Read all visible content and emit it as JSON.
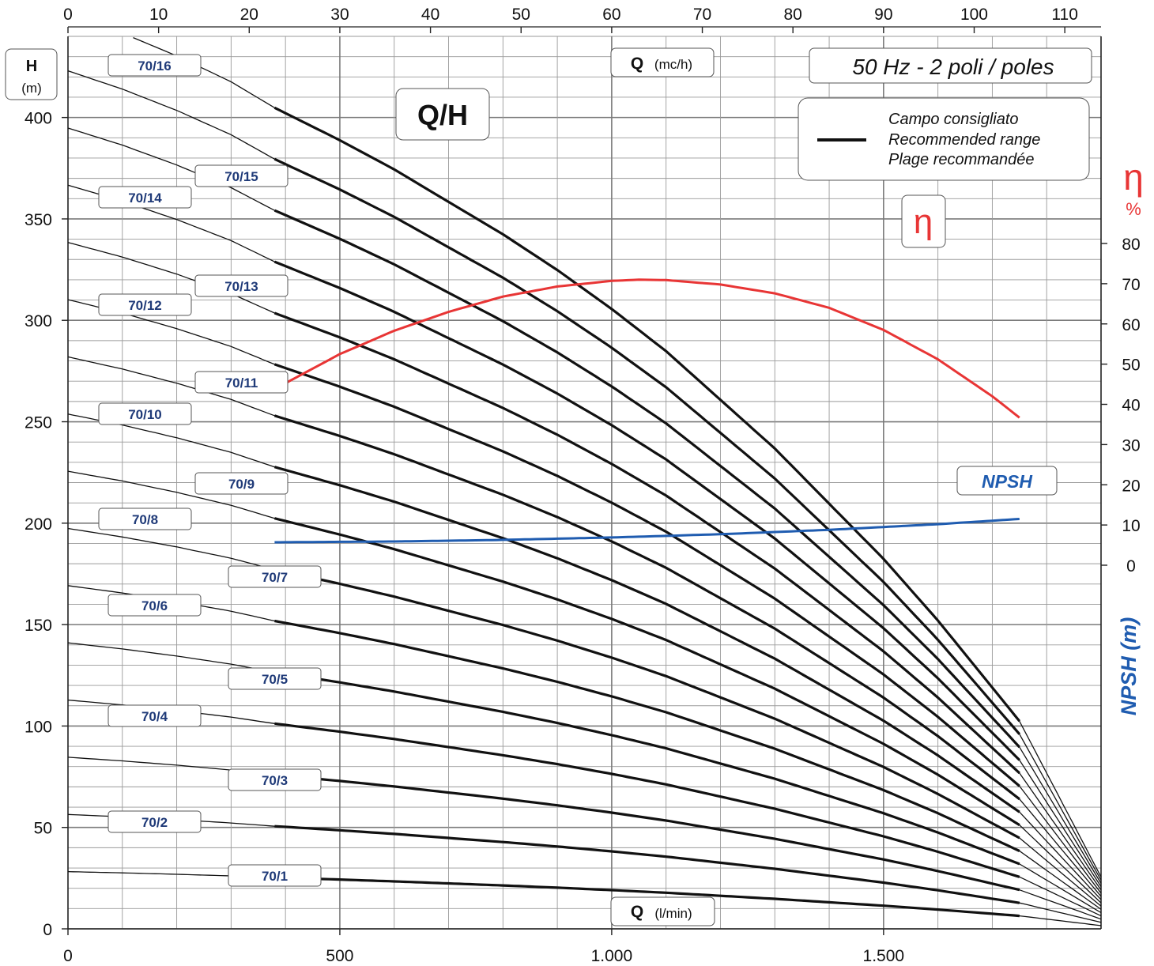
{
  "chart_data": {
    "type": "line",
    "title": "Q/H",
    "frequency_label": "50 Hz - 2 poli / poles",
    "legend": {
      "placement": "top-right",
      "lines": [
        "Campo consigliato",
        "Recommended range",
        "Plage recommandée"
      ]
    },
    "axes": {
      "x_bottom": {
        "label_bold": "Q",
        "label_unit": "(l/min)",
        "range": [
          0,
          1900
        ],
        "ticks": [
          0,
          500,
          1000,
          1500
        ],
        "tick_labels": [
          "0",
          "500",
          "1.000",
          "1.500"
        ]
      },
      "x_top": {
        "label_bold": "Q",
        "label_unit": "(mc/h)",
        "range": [
          0,
          114
        ],
        "ticks": [
          0,
          10,
          20,
          30,
          40,
          50,
          60,
          70,
          80,
          90,
          100,
          110
        ]
      },
      "y_left": {
        "label_bold": "H",
        "label_unit": "(m)",
        "range": [
          0,
          440
        ],
        "ticks": [
          0,
          50,
          100,
          150,
          200,
          250,
          300,
          350,
          400
        ]
      },
      "y_right_eta": {
        "label_symbol": "η",
        "label_unit": "%",
        "range": [
          0,
          80
        ],
        "ticks": [
          0,
          10,
          20,
          30,
          40,
          50,
          60,
          70,
          80
        ]
      },
      "y_right_npsh": {
        "label": "NPSH (m)",
        "note": "shares the right-hand 0–80 scale with η"
      }
    },
    "grid": true,
    "series": [
      {
        "name": "70/1",
        "stages": 1
      },
      {
        "name": "70/2",
        "stages": 2
      },
      {
        "name": "70/3",
        "stages": 3
      },
      {
        "name": "70/4",
        "stages": 4
      },
      {
        "name": "70/5",
        "stages": 5
      },
      {
        "name": "70/6",
        "stages": 6
      },
      {
        "name": "70/7",
        "stages": 7
      },
      {
        "name": "70/8",
        "stages": 8
      },
      {
        "name": "70/9",
        "stages": 9
      },
      {
        "name": "70/10",
        "stages": 10
      },
      {
        "name": "70/11",
        "stages": 11
      },
      {
        "name": "70/12",
        "stages": 12
      },
      {
        "name": "70/13",
        "stages": 13
      },
      {
        "name": "70/14",
        "stages": 14
      },
      {
        "name": "70/15",
        "stages": 15
      },
      {
        "name": "70/16",
        "stages": 16
      }
    ],
    "single_stage_head_curve": {
      "q_lmin": [
        0,
        100,
        200,
        300,
        380,
        500,
        600,
        700,
        800,
        900,
        1000,
        1100,
        1200,
        1300,
        1400,
        1500,
        1600,
        1750,
        1900
      ],
      "head_m": [
        28.2,
        27.6,
        26.9,
        26.1,
        25.3,
        24.3,
        23.4,
        22.4,
        21.4,
        20.3,
        19.1,
        17.8,
        16.3,
        14.8,
        13.1,
        11.4,
        9.5,
        6.4,
        1.6
      ]
    },
    "recommended_range_lmin": [
      380,
      1750
    ],
    "efficiency_curve": {
      "name": "η",
      "q_lmin": [
        380,
        500,
        600,
        700,
        800,
        900,
        1000,
        1050,
        1100,
        1200,
        1300,
        1400,
        1500,
        1600,
        1700,
        1750
      ],
      "eta_pct": [
        43.8,
        52.5,
        58.3,
        63.0,
        66.8,
        69.3,
        70.7,
        71.0,
        70.9,
        69.8,
        67.6,
        64.0,
        58.5,
        51.2,
        42.0,
        36.7
      ]
    },
    "npsh_curve": {
      "name": "NPSH",
      "q_lmin": [
        380,
        600,
        800,
        1000,
        1200,
        1400,
        1600,
        1750
      ],
      "npsh_m": [
        5.7,
        5.9,
        6.3,
        6.9,
        7.7,
        8.8,
        10.2,
        11.5
      ]
    }
  }
}
